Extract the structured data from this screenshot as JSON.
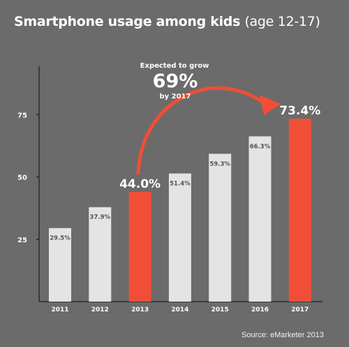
{
  "title": "Smartphone usage among kids",
  "subtitle": "(age 12-17)",
  "source": "Source: eMarketer 2013",
  "annotation": {
    "line1": "Expected to grow",
    "big": "69%",
    "line3": "by 2017"
  },
  "colors": {
    "background": "#6b6b6b",
    "bar": "#e4e4e4",
    "highlight": "#f04e37",
    "axis": "#2a2a2a",
    "text": "#ffffff"
  },
  "chart_data": {
    "type": "bar",
    "categories": [
      "2011",
      "2012",
      "2013",
      "2014",
      "2015",
      "2016",
      "2017"
    ],
    "values": [
      29.5,
      37.9,
      44.0,
      51.4,
      59.3,
      66.3,
      73.4
    ],
    "labels": [
      "29.5%",
      "37.9%",
      "44.0%",
      "51.4%",
      "59.3%",
      "66.3%",
      "73.4%"
    ],
    "highlight": [
      "2013",
      "2017"
    ],
    "yticks": [
      25,
      50,
      75
    ],
    "ylim": [
      0,
      94
    ],
    "title": "Smartphone usage among kids (age 12-17)",
    "xlabel": "",
    "ylabel": ""
  }
}
